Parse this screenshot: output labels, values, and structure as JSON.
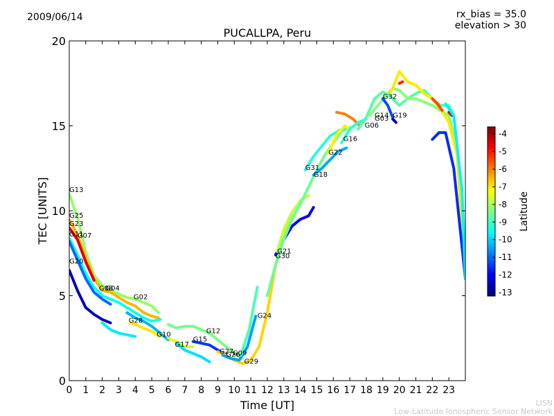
{
  "header": {
    "date": "2009/06/14",
    "rx_bias": "rx_bias = 35.0",
    "elevation": "elevation > 30",
    "title": "PUCALLPA, Peru"
  },
  "footer": {
    "line1": "LISN",
    "line2": "Low-Latitude Ionospheric Sensor Network"
  },
  "chart_data": {
    "type": "scatter",
    "title": "PUCALLPA, Peru",
    "xlabel": "Time [UT]",
    "ylabel": "TEC [UNITS]",
    "xlim": [
      0,
      24
    ],
    "ylim": [
      0,
      20
    ],
    "xticks": [
      "0",
      "1",
      "2",
      "3",
      "4",
      "5",
      "6",
      "7",
      "8",
      "9",
      "10",
      "11",
      "12",
      "13",
      "14",
      "15",
      "16",
      "17",
      "18",
      "19",
      "20",
      "21",
      "22",
      "23"
    ],
    "yticks": [
      "0",
      "5",
      "10",
      "15",
      "20"
    ],
    "colorbar": {
      "label": "Latitude",
      "range": [
        -13.2,
        -3.6
      ],
      "ticks": [
        "-4",
        "-5",
        "-6",
        "-7",
        "-8",
        "-9",
        "-10",
        "-11",
        "-12",
        "-13"
      ],
      "colors": [
        "#00007f",
        "#0000ff",
        "#007fff",
        "#00ffff",
        "#7fff7f",
        "#ffff00",
        "#ff7f00",
        "#ff0000",
        "#7f0000"
      ]
    },
    "satellite_labels": [
      {
        "text": "G13",
        "x": 0.0,
        "y": 11.1
      },
      {
        "text": "G25",
        "x": 0.0,
        "y": 9.6
      },
      {
        "text": "G23",
        "x": 0.0,
        "y": 9.1
      },
      {
        "text": "G11",
        "x": 0.0,
        "y": 8.5
      },
      {
        "text": "G07",
        "x": 0.5,
        "y": 8.4
      },
      {
        "text": "G20",
        "x": 0.0,
        "y": 6.9
      },
      {
        "text": "G08",
        "x": 1.8,
        "y": 5.3
      },
      {
        "text": "G04",
        "x": 2.2,
        "y": 5.3
      },
      {
        "text": "G02",
        "x": 3.9,
        "y": 4.8
      },
      {
        "text": "G28",
        "x": 3.6,
        "y": 3.4
      },
      {
        "text": "G10",
        "x": 5.3,
        "y": 2.6
      },
      {
        "text": "G17",
        "x": 6.4,
        "y": 2.0
      },
      {
        "text": "G15",
        "x": 7.5,
        "y": 2.3
      },
      {
        "text": "G12",
        "x": 8.3,
        "y": 2.8
      },
      {
        "text": "G27",
        "x": 9.1,
        "y": 1.6
      },
      {
        "text": "G26",
        "x": 9.5,
        "y": 1.4
      },
      {
        "text": "G09",
        "x": 9.9,
        "y": 1.5
      },
      {
        "text": "G29",
        "x": 10.6,
        "y": 1.0
      },
      {
        "text": "G24",
        "x": 11.4,
        "y": 3.7
      },
      {
        "text": "G21",
        "x": 12.6,
        "y": 7.5
      },
      {
        "text": "G30",
        "x": 12.5,
        "y": 7.2
      },
      {
        "text": "G31",
        "x": 14.3,
        "y": 12.4
      },
      {
        "text": "G18",
        "x": 14.8,
        "y": 12.0
      },
      {
        "text": "G22",
        "x": 15.7,
        "y": 13.3
      },
      {
        "text": "G16",
        "x": 16.6,
        "y": 14.1
      },
      {
        "text": "G06",
        "x": 17.9,
        "y": 14.9
      },
      {
        "text": "G14",
        "x": 18.5,
        "y": 15.5
      },
      {
        "text": "G03",
        "x": 18.5,
        "y": 15.3
      },
      {
        "text": "G32",
        "x": 19.0,
        "y": 16.6
      },
      {
        "text": "G19",
        "x": 19.6,
        "y": 15.5
      }
    ],
    "series": [
      {
        "lat": -8.2,
        "points": [
          [
            0,
            11
          ],
          [
            0.5,
            9.6
          ],
          [
            1,
            7.6
          ],
          [
            1.5,
            6.2
          ],
          [
            2,
            5.6
          ],
          [
            2.5,
            5.3
          ],
          [
            3,
            5.1
          ],
          [
            3.5,
            4.9
          ],
          [
            4,
            4.8
          ],
          [
            4.5,
            4.6
          ],
          [
            5,
            4.4
          ],
          [
            5.4,
            4.0
          ]
        ]
      },
      {
        "lat": -6.5,
        "points": [
          [
            0,
            9.5
          ],
          [
            0.5,
            8.6
          ],
          [
            1,
            7.2
          ],
          [
            1.5,
            6.0
          ],
          [
            2,
            5.3
          ],
          [
            2.5,
            5.2
          ],
          [
            3,
            4.9
          ],
          [
            3.5,
            4.6
          ],
          [
            4,
            4.4
          ],
          [
            4.5,
            4.0
          ],
          [
            5,
            3.8
          ],
          [
            5.4,
            3.7
          ]
        ]
      },
      {
        "lat": -4.5,
        "points": [
          [
            0,
            9.0
          ],
          [
            0.5,
            8.3
          ],
          [
            1,
            7.0
          ],
          [
            1.5,
            5.9
          ]
        ]
      },
      {
        "lat": -9.5,
        "points": [
          [
            0,
            8.4
          ],
          [
            0.5,
            7.4
          ],
          [
            1,
            6.3
          ],
          [
            1.5,
            5.5
          ],
          [
            2,
            5.0
          ],
          [
            2.5,
            4.8
          ],
          [
            3,
            4.6
          ],
          [
            3.5,
            4.3
          ],
          [
            4,
            4.0
          ],
          [
            4.5,
            3.7
          ],
          [
            5,
            3.5
          ],
          [
            5.5,
            3.6
          ]
        ]
      },
      {
        "lat": -11.0,
        "points": [
          [
            0,
            8.2
          ],
          [
            0.5,
            7.1
          ],
          [
            1,
            6.0
          ],
          [
            1.5,
            5.2
          ],
          [
            2,
            4.8
          ],
          [
            2.5,
            4.5
          ]
        ]
      },
      {
        "lat": -12.6,
        "points": [
          [
            0,
            6.5
          ],
          [
            0.5,
            5.3
          ],
          [
            1,
            4.3
          ],
          [
            1.5,
            3.9
          ],
          [
            2,
            3.6
          ],
          [
            2.5,
            3.4
          ]
        ]
      },
      {
        "lat": -9.8,
        "points": [
          [
            2,
            3.4
          ],
          [
            2.5,
            3.0
          ],
          [
            3,
            2.8
          ],
          [
            3.5,
            2.7
          ],
          [
            4,
            2.6
          ]
        ]
      },
      {
        "lat": -10.3,
        "points": [
          [
            3.5,
            4.0
          ],
          [
            4,
            3.7
          ],
          [
            4.5,
            3.5
          ],
          [
            5,
            3.2
          ],
          [
            5.5,
            2.8
          ],
          [
            6,
            2.4
          ]
        ]
      },
      {
        "lat": -7.0,
        "points": [
          [
            3.7,
            3.4
          ],
          [
            4,
            3.3
          ],
          [
            4.5,
            3.1
          ],
          [
            5,
            2.9
          ],
          [
            5.5,
            2.6
          ]
        ]
      },
      {
        "lat": -8.5,
        "points": [
          [
            6,
            3.3
          ],
          [
            6.5,
            3.1
          ],
          [
            7,
            3.2
          ],
          [
            7.5,
            3.2
          ],
          [
            8,
            3.0
          ],
          [
            8.5,
            2.8
          ],
          [
            9,
            2.4
          ],
          [
            9.5,
            2.0
          ],
          [
            10,
            1.6
          ],
          [
            10.5,
            1.3
          ]
        ]
      },
      {
        "lat": -7.6,
        "points": [
          [
            6,
            2.5
          ],
          [
            6.5,
            2.3
          ],
          [
            7,
            2.0
          ],
          [
            7.5,
            2.0
          ]
        ]
      },
      {
        "lat": -11.5,
        "points": [
          [
            7.5,
            2.3
          ],
          [
            8,
            2.2
          ],
          [
            8.5,
            2.1
          ],
          [
            9,
            1.8
          ],
          [
            9.5,
            1.5
          ]
        ]
      },
      {
        "lat": -9.9,
        "points": [
          [
            6.5,
            2.2
          ],
          [
            7,
            1.8
          ],
          [
            7.5,
            1.6
          ],
          [
            8,
            1.4
          ],
          [
            8.5,
            1.1
          ]
        ]
      },
      {
        "lat": -6.8,
        "points": [
          [
            9,
            1.7
          ],
          [
            9.5,
            1.5
          ],
          [
            10,
            1.2
          ],
          [
            10.5,
            1.0
          ],
          [
            11,
            1.2
          ],
          [
            11.5,
            2.0
          ],
          [
            12,
            4.0
          ],
          [
            12.5,
            6.8
          ],
          [
            13,
            8.7
          ],
          [
            13.5,
            9.8
          ]
        ]
      },
      {
        "lat": -10.5,
        "points": [
          [
            9.3,
            1.5
          ],
          [
            9.8,
            1.3
          ],
          [
            10.3,
            1.2
          ],
          [
            10.8,
            2.0
          ],
          [
            11.3,
            3.8
          ]
        ]
      },
      {
        "lat": -8.9,
        "points": [
          [
            10.4,
            1.5
          ],
          [
            10.9,
            3.0
          ],
          [
            11.4,
            5.5
          ]
        ]
      },
      {
        "lat": -12.0,
        "points": [
          [
            12.5,
            7.4
          ],
          [
            13,
            8.3
          ],
          [
            13.5,
            9.1
          ],
          [
            14,
            9.5
          ],
          [
            14.5,
            9.7
          ],
          [
            14.8,
            10.2
          ]
        ]
      },
      {
        "lat": -7.8,
        "points": [
          [
            12.6,
            7.6
          ],
          [
            13,
            8.9
          ],
          [
            13.5,
            9.9
          ],
          [
            14,
            10.6
          ],
          [
            14.5,
            10.9
          ]
        ]
      },
      {
        "lat": -8.6,
        "points": [
          [
            12.0,
            5.0
          ],
          [
            12.5,
            6.8
          ],
          [
            13,
            8.3
          ],
          [
            13.5,
            9.5
          ],
          [
            14,
            10.4
          ],
          [
            14.5,
            11.4
          ],
          [
            15,
            12.4
          ],
          [
            15.5,
            13.3
          ],
          [
            16,
            14.0
          ],
          [
            16.5,
            14.7
          ],
          [
            17,
            14.9
          ]
        ]
      },
      {
        "lat": -9.3,
        "points": [
          [
            14.3,
            12.4
          ],
          [
            14.8,
            13.2
          ],
          [
            15.3,
            13.8
          ],
          [
            15.8,
            14.4
          ],
          [
            16.3,
            14.7
          ],
          [
            16.8,
            14.9
          ]
        ]
      },
      {
        "lat": -10.4,
        "points": [
          [
            14.8,
            12.1
          ],
          [
            15.3,
            12.5
          ],
          [
            15.8,
            13.0
          ],
          [
            16.3,
            13.5
          ],
          [
            16.8,
            13.7
          ]
        ]
      },
      {
        "lat": -7.1,
        "points": [
          [
            15.7,
            13.4
          ],
          [
            16.2,
            14.5
          ],
          [
            16.7,
            15.0
          ],
          [
            17.0,
            14.8
          ]
        ]
      },
      {
        "lat": -6.0,
        "points": [
          [
            16.2,
            15.8
          ],
          [
            16.7,
            15.7
          ],
          [
            17.2,
            15.4
          ],
          [
            17.6,
            15.0
          ]
        ]
      },
      {
        "lat": -9.2,
        "points": [
          [
            16.5,
            14.0
          ],
          [
            17,
            14.8
          ],
          [
            17.5,
            15.2
          ],
          [
            18,
            15.4
          ]
        ]
      },
      {
        "lat": -8.8,
        "points": [
          [
            17.5,
            14.8
          ],
          [
            18,
            15.5
          ],
          [
            18.5,
            16.6
          ],
          [
            19,
            17.0
          ],
          [
            19.5,
            16.7
          ],
          [
            20,
            16.2
          ],
          [
            20.5,
            16.6
          ],
          [
            21,
            16.9
          ],
          [
            21.5,
            17.1
          ],
          [
            22,
            16.6
          ],
          [
            22.5,
            16.2
          ],
          [
            23,
            16.2
          ],
          [
            23.2,
            15.8
          ]
        ]
      },
      {
        "lat": -8.3,
        "points": [
          [
            18.2,
            15.6
          ],
          [
            18.7,
            16.2
          ],
          [
            19.2,
            16.8
          ],
          [
            19.6,
            17.2
          ],
          [
            20,
            17.1
          ],
          [
            20.5,
            16.6
          ],
          [
            21,
            16.6
          ],
          [
            21.5,
            16.4
          ],
          [
            22,
            16.2
          ],
          [
            22.5,
            15.9
          ],
          [
            23,
            15.6
          ],
          [
            23.5,
            13.7
          ],
          [
            24,
            6.0
          ]
        ]
      },
      {
        "lat": -7.0,
        "points": [
          [
            19.5,
            17.0
          ],
          [
            20,
            18.2
          ],
          [
            20.5,
            17.6
          ],
          [
            21,
            17.4
          ],
          [
            21.5,
            16.9
          ],
          [
            22,
            16.6
          ],
          [
            22.5,
            16.0
          ],
          [
            23,
            15.2
          ],
          [
            23.5,
            13.3
          ],
          [
            24,
            6.0
          ]
        ]
      },
      {
        "lat": -5.2,
        "points": [
          [
            20,
            17.5
          ],
          [
            20.2,
            17.6
          ]
        ]
      },
      {
        "lat": -5.5,
        "points": [
          [
            22,
            16.6
          ],
          [
            22.3,
            16.3
          ],
          [
            22.6,
            15.9
          ]
        ]
      },
      {
        "lat": -4.3,
        "points": [
          [
            23,
            15.8
          ],
          [
            23.2,
            15.6
          ]
        ]
      },
      {
        "lat": -11.3,
        "points": [
          [
            19,
            16.6
          ],
          [
            19.3,
            16.2
          ],
          [
            19.6,
            15.5
          ]
        ]
      },
      {
        "lat": -11.6,
        "points": [
          [
            22,
            14.2
          ],
          [
            22.4,
            14.6
          ],
          [
            22.8,
            14.6
          ],
          [
            23.3,
            12.5
          ],
          [
            23.7,
            8.8
          ],
          [
            24,
            6.0
          ]
        ]
      },
      {
        "lat": -12.8,
        "points": [
          [
            19.6,
            15.4
          ],
          [
            19.8,
            15.2
          ]
        ]
      },
      {
        "lat": -9.7,
        "points": [
          [
            22.8,
            16.3
          ],
          [
            23.3,
            15.6
          ],
          [
            23.8,
            11.2
          ],
          [
            24,
            6.0
          ]
        ]
      }
    ]
  }
}
